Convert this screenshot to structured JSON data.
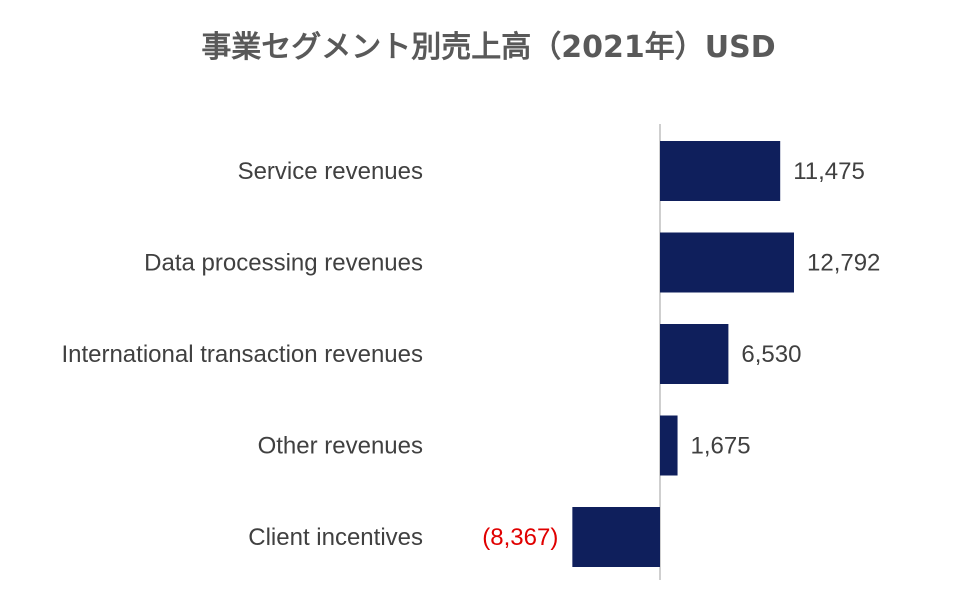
{
  "chart_data": {
    "type": "bar",
    "orientation": "horizontal",
    "title": "事業セグメント別売上高（2021年）USD",
    "categories": [
      "Service revenues",
      "Data processing revenues",
      "International transaction revenues",
      "Other revenues",
      "Client incentives"
    ],
    "values": [
      11475,
      12792,
      6530,
      1675,
      -8367
    ],
    "data_labels": [
      "11,475",
      "12,792",
      "6,530",
      "1,675",
      "(8,367)"
    ],
    "bar_color": "#0F1F5C",
    "label_color": "#404040",
    "negative_label_color": "#E00000",
    "axis_color": "#BFBFBF",
    "grid": false,
    "legend": "none"
  }
}
